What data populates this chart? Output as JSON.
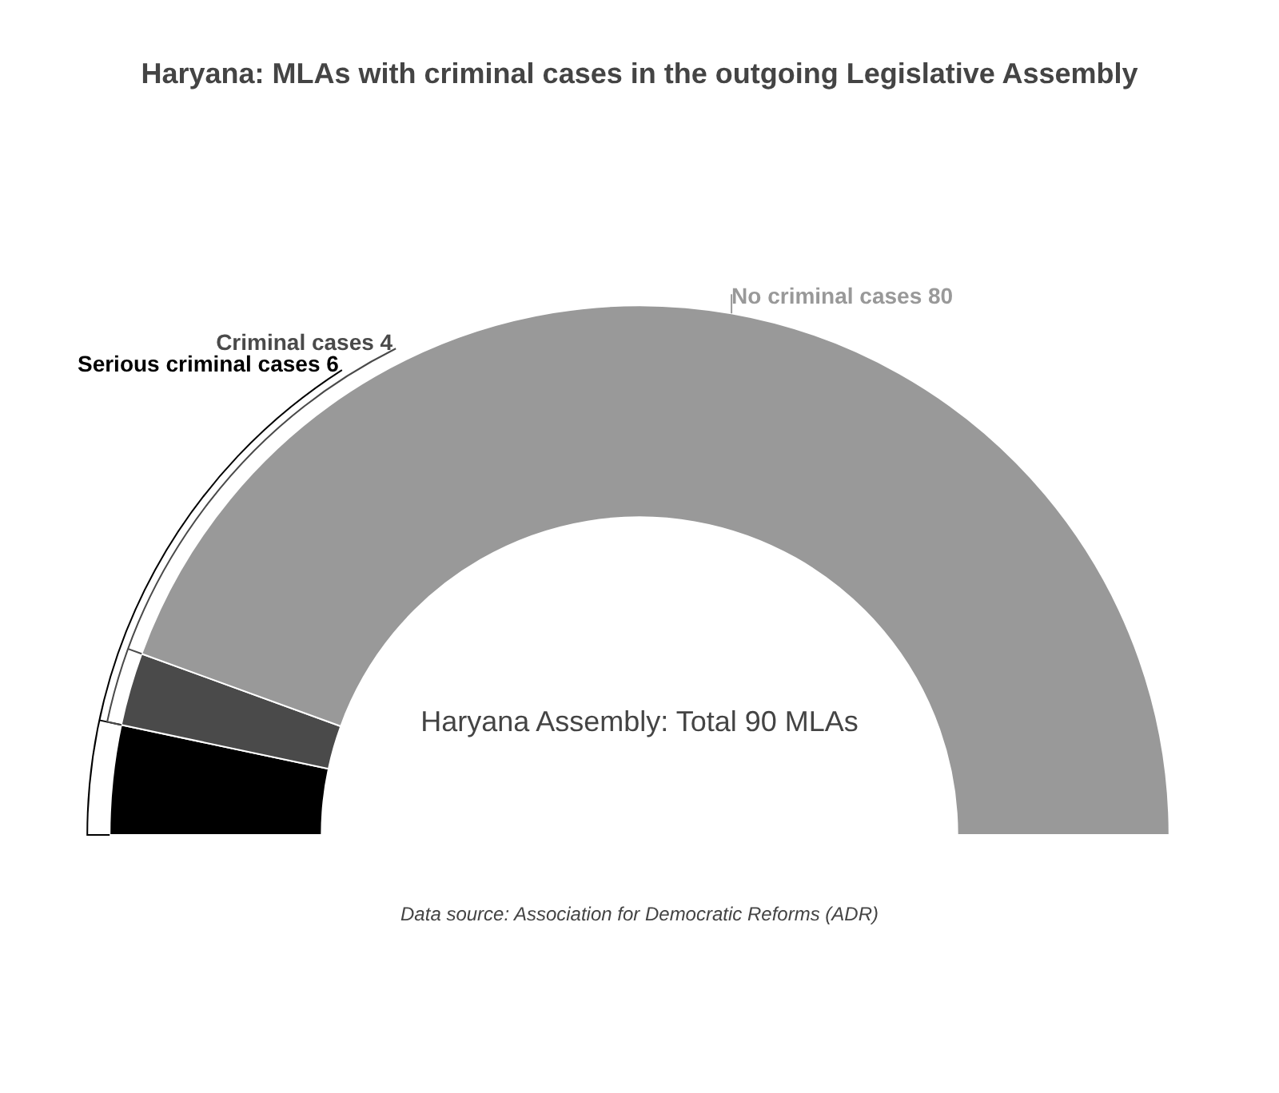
{
  "chart_data": {
    "type": "donut",
    "title": "Haryana: MLAs with criminal cases in the outgoing Legislative Assembly",
    "categories": [
      "Serious criminal cases",
      "Criminal cases",
      "No criminal cases"
    ],
    "values": [
      6,
      4,
      80
    ],
    "colors": [
      "#000000",
      "#4a4a4a",
      "#999999"
    ],
    "data_labels": true,
    "legend": false,
    "annotations": [
      "Haryana Assembly: Total 90 MLAs",
      "Data source: Association for Democratic Reforms (ADR)"
    ]
  }
}
